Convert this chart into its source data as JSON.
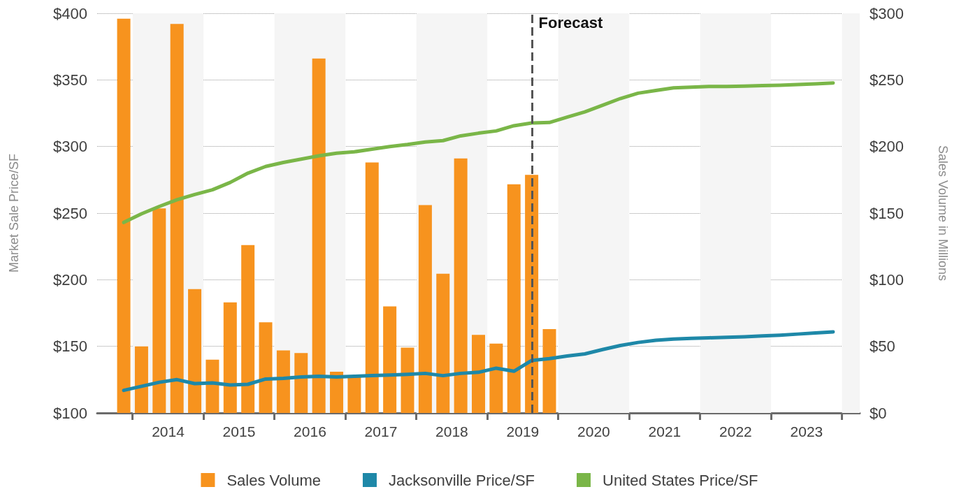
{
  "chart_data": {
    "type": "bar",
    "ylabel": "Market Sale Price/SF",
    "y2label": "Sales Volume in Millions",
    "xlim": [
      2013.5,
      2024.25
    ],
    "xticks": [
      {
        "value": 2014,
        "label": null
      },
      {
        "value": 2014.5,
        "label": "2014"
      },
      {
        "value": 2015,
        "label": null
      },
      {
        "value": 2015.5,
        "label": "2015"
      },
      {
        "value": 2016,
        "label": null
      },
      {
        "value": 2016.5,
        "label": "2016"
      },
      {
        "value": 2017,
        "label": null
      },
      {
        "value": 2017.5,
        "label": "2017"
      },
      {
        "value": 2018,
        "label": null
      },
      {
        "value": 2018.5,
        "label": "2018"
      },
      {
        "value": 2019,
        "label": null
      },
      {
        "value": 2019.5,
        "label": "2019"
      },
      {
        "value": 2020,
        "label": null
      },
      {
        "value": 2020.5,
        "label": "2020"
      },
      {
        "value": 2021,
        "label": null
      },
      {
        "value": 2021.5,
        "label": "2021"
      },
      {
        "value": 2022,
        "label": null
      },
      {
        "value": 2022.5,
        "label": "2022"
      },
      {
        "value": 2023,
        "label": null
      },
      {
        "value": 2023.5,
        "label": "2023"
      },
      {
        "value": 2024,
        "label": null
      }
    ],
    "ylim": [
      100,
      400
    ],
    "yticks": [
      {
        "value": 100,
        "label": "$100"
      },
      {
        "value": 150,
        "label": "$150"
      },
      {
        "value": 200,
        "label": "$200"
      },
      {
        "value": 250,
        "label": "$250"
      },
      {
        "value": 300,
        "label": "$300"
      },
      {
        "value": 350,
        "label": "$350"
      },
      {
        "value": 400,
        "label": "$400"
      }
    ],
    "y2lim": [
      0,
      300
    ],
    "y2ticks": [
      {
        "value": 0,
        "label": "$0"
      },
      {
        "value": 50,
        "label": "$50"
      },
      {
        "value": 100,
        "label": "$100"
      },
      {
        "value": 150,
        "label": "$150"
      },
      {
        "value": 200,
        "label": "$200"
      },
      {
        "value": 250,
        "label": "$250"
      },
      {
        "value": 300,
        "label": "$300"
      }
    ],
    "grid": "y",
    "legend": "bottom",
    "marker": "none",
    "line_style": "solid",
    "series": [
      {
        "name": "Sales Volume",
        "axis": "y2",
        "color": "#f7931e",
        "x": [
          2013.875,
          2014.125,
          2014.375,
          2014.625,
          2014.875,
          2015.125,
          2015.375,
          2015.625,
          2015.875,
          2016.125,
          2016.375,
          2016.625,
          2016.875,
          2017.125,
          2017.375,
          2017.625,
          2017.875,
          2018.125,
          2018.375,
          2018.625,
          2018.875,
          2019.125,
          2019.375,
          2019.625,
          2019.875
        ],
        "values": [
          296,
          50,
          153.5,
          292,
          93,
          40,
          83,
          126,
          68,
          47,
          45,
          266,
          31,
          27,
          188,
          80,
          49,
          156,
          104.5,
          191,
          58.6,
          52,
          171.7,
          178.7,
          63
        ]
      },
      {
        "name": "Jacksonville Price/SF",
        "type": "line",
        "color": "#1e88a8",
        "x": [
          2013.875,
          2014.125,
          2014.375,
          2014.625,
          2014.875,
          2015.125,
          2015.375,
          2015.625,
          2015.875,
          2016.125,
          2016.375,
          2016.625,
          2016.875,
          2017.125,
          2017.375,
          2017.625,
          2017.875,
          2018.125,
          2018.375,
          2018.625,
          2018.875,
          2019.125,
          2019.375,
          2019.625,
          2019.875,
          2020.125,
          2020.375,
          2020.625,
          2020.875,
          2021.125,
          2021.375,
          2021.625,
          2021.875,
          2022.125,
          2022.375,
          2022.625,
          2022.875,
          2023.125,
          2023.375,
          2023.625,
          2023.875
        ],
        "values": [
          117,
          120,
          123,
          125,
          122,
          122.5,
          121,
          121.5,
          125.5,
          126,
          127,
          127.5,
          127,
          127.5,
          128,
          128.5,
          129,
          129.7,
          128,
          129.7,
          130.5,
          133.6,
          131.3,
          139.4,
          140.8,
          142.7,
          144.3,
          147.6,
          150.6,
          152.9,
          154.5,
          155.5,
          156,
          156.4,
          156.8,
          157.2,
          157.8,
          158.4,
          159.2,
          160,
          160.9
        ]
      },
      {
        "name": "United States Price/SF",
        "type": "line",
        "color": "#7ab648",
        "x": [
          2013.875,
          2014.125,
          2014.375,
          2014.625,
          2014.875,
          2015.125,
          2015.375,
          2015.625,
          2015.875,
          2016.125,
          2016.375,
          2016.625,
          2016.875,
          2017.125,
          2017.375,
          2017.625,
          2017.875,
          2018.125,
          2018.375,
          2018.625,
          2018.875,
          2019.125,
          2019.375,
          2019.625,
          2019.875,
          2020.125,
          2020.375,
          2020.625,
          2020.875,
          2021.125,
          2021.375,
          2021.625,
          2021.875,
          2022.125,
          2022.375,
          2022.625,
          2022.875,
          2023.125,
          2023.375,
          2023.625,
          2023.875
        ],
        "values": [
          243,
          249.5,
          255,
          260,
          264,
          267.5,
          273,
          280,
          285,
          288,
          290.5,
          293,
          295,
          296,
          298,
          300,
          301.5,
          303.4,
          304.4,
          308,
          310,
          311.7,
          315.6,
          317.7,
          318,
          322,
          326,
          331,
          336,
          340,
          342,
          344,
          344.5,
          345,
          345,
          345.3,
          345.7,
          346,
          346.5,
          347,
          347.7
        ]
      }
    ],
    "ref_lines": [
      {
        "axis": "x",
        "value": 2019.625,
        "label": "Forecast",
        "color": "#555555",
        "line_style": "dashed"
      }
    ],
    "bands": [
      {
        "axis": "x",
        "from": 2014,
        "to": 2015,
        "color": "#f5f5f5"
      },
      {
        "axis": "x",
        "from": 2016,
        "to": 2017,
        "color": "#f5f5f5"
      },
      {
        "axis": "x",
        "from": 2018,
        "to": 2019,
        "color": "#f5f5f5"
      },
      {
        "axis": "x",
        "from": 2020,
        "to": 2021,
        "color": "#f5f5f5"
      },
      {
        "axis": "x",
        "from": 2022,
        "to": 2023,
        "color": "#f5f5f5"
      },
      {
        "axis": "x",
        "from": 2024,
        "to": 2024.25,
        "color": "#f5f5f5"
      }
    ]
  }
}
